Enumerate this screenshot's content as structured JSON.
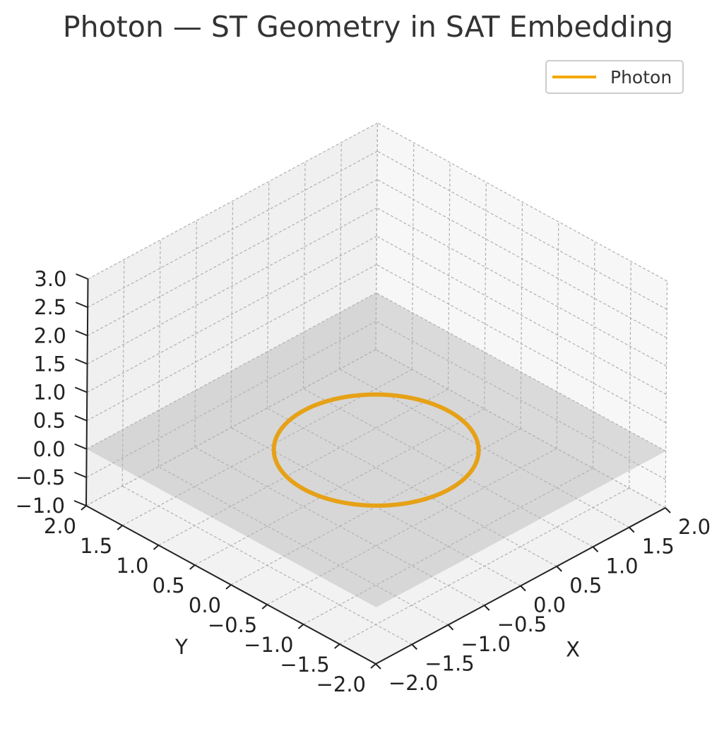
{
  "chart_data": {
    "type": "line",
    "projection": "3d",
    "title": "Photon — ST Geometry in SAT Embedding",
    "xlabel": "X",
    "ylabel": "Y",
    "zlabel": "",
    "xlim": [
      -2,
      2
    ],
    "ylim": [
      -2,
      2
    ],
    "zlim": [
      -1,
      3
    ],
    "xticks": [
      "−2.0",
      "−1.5",
      "−1.0",
      "−0.5",
      "0.0",
      "0.5",
      "1.0",
      "1.5",
      "2.0"
    ],
    "yticks": [
      "−2.0",
      "−1.5",
      "−1.0",
      "−0.5",
      "0.0",
      "0.5",
      "1.0",
      "1.5",
      "2.0"
    ],
    "zticks": [
      "−1.0",
      "−0.5",
      "0.0",
      "0.5",
      "1.0",
      "1.5",
      "2.0",
      "2.5",
      "3.0"
    ],
    "grid": true,
    "legend_position": "top-right",
    "plane": {
      "z": 0,
      "x_range": [
        -2,
        2
      ],
      "y_range": [
        -2,
        2
      ],
      "color": "#b5b5b5"
    },
    "series": [
      {
        "name": "Photon",
        "color": "#e6a117",
        "legend_color": "#f5a800",
        "curve": "circle",
        "center": [
          0,
          0,
          0
        ],
        "radius": 1,
        "z": 0
      }
    ]
  }
}
